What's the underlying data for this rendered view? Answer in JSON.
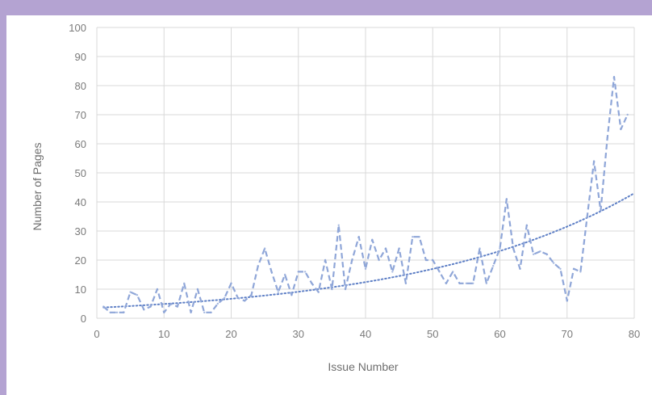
{
  "chart_data": {
    "type": "line",
    "title": "",
    "xlabel": "Issue Number",
    "ylabel": "Number of Pages",
    "xlim": [
      0,
      80
    ],
    "ylim": [
      0,
      100
    ],
    "xticks": [
      0,
      10,
      20,
      30,
      40,
      50,
      60,
      70,
      80
    ],
    "yticks": [
      0,
      10,
      20,
      30,
      40,
      50,
      60,
      70,
      80,
      90,
      100
    ],
    "grid": true,
    "legend": "none",
    "colors": {
      "series": "#8fa6d8",
      "trend": "#5f80c6",
      "grid": "#d9d9d9",
      "frame": "#b4a3d2"
    },
    "series": [
      {
        "style": "dashed",
        "x": [
          1,
          2,
          3,
          4,
          5,
          6,
          7,
          8,
          9,
          10,
          11,
          12,
          13,
          14,
          15,
          16,
          17,
          18,
          19,
          20,
          21,
          22,
          23,
          24,
          25,
          26,
          27,
          28,
          29,
          30,
          31,
          32,
          33,
          34,
          35,
          36,
          37,
          38,
          39,
          40,
          41,
          42,
          43,
          44,
          45,
          46,
          47,
          48,
          49,
          50,
          51,
          52,
          53,
          54,
          55,
          56,
          57,
          58,
          59,
          60,
          61,
          62,
          63,
          64,
          65,
          66,
          67,
          68,
          69,
          70,
          71,
          72,
          73,
          74,
          75,
          76,
          77,
          78,
          79
        ],
        "y": [
          4,
          2,
          2,
          2,
          9,
          8,
          3,
          4,
          10,
          2,
          5,
          4,
          12,
          2,
          10,
          2,
          2,
          5,
          7,
          12,
          7,
          6,
          8,
          18,
          24,
          16,
          9,
          15,
          8,
          16,
          16,
          12,
          9,
          20,
          10,
          32,
          10,
          20,
          28,
          17,
          27,
          20,
          24,
          16,
          24,
          12,
          28,
          28,
          20,
          20,
          16,
          12,
          16,
          12,
          12,
          12,
          24,
          12,
          18,
          24,
          41,
          24,
          17,
          32,
          22,
          23,
          22,
          19,
          17,
          6,
          17,
          16,
          35,
          54,
          37,
          62,
          83,
          65,
          70
        ]
      }
    ],
    "trendline": {
      "type": "exponential",
      "style": "dotted",
      "a": 3.6,
      "b": 0.031
    }
  }
}
